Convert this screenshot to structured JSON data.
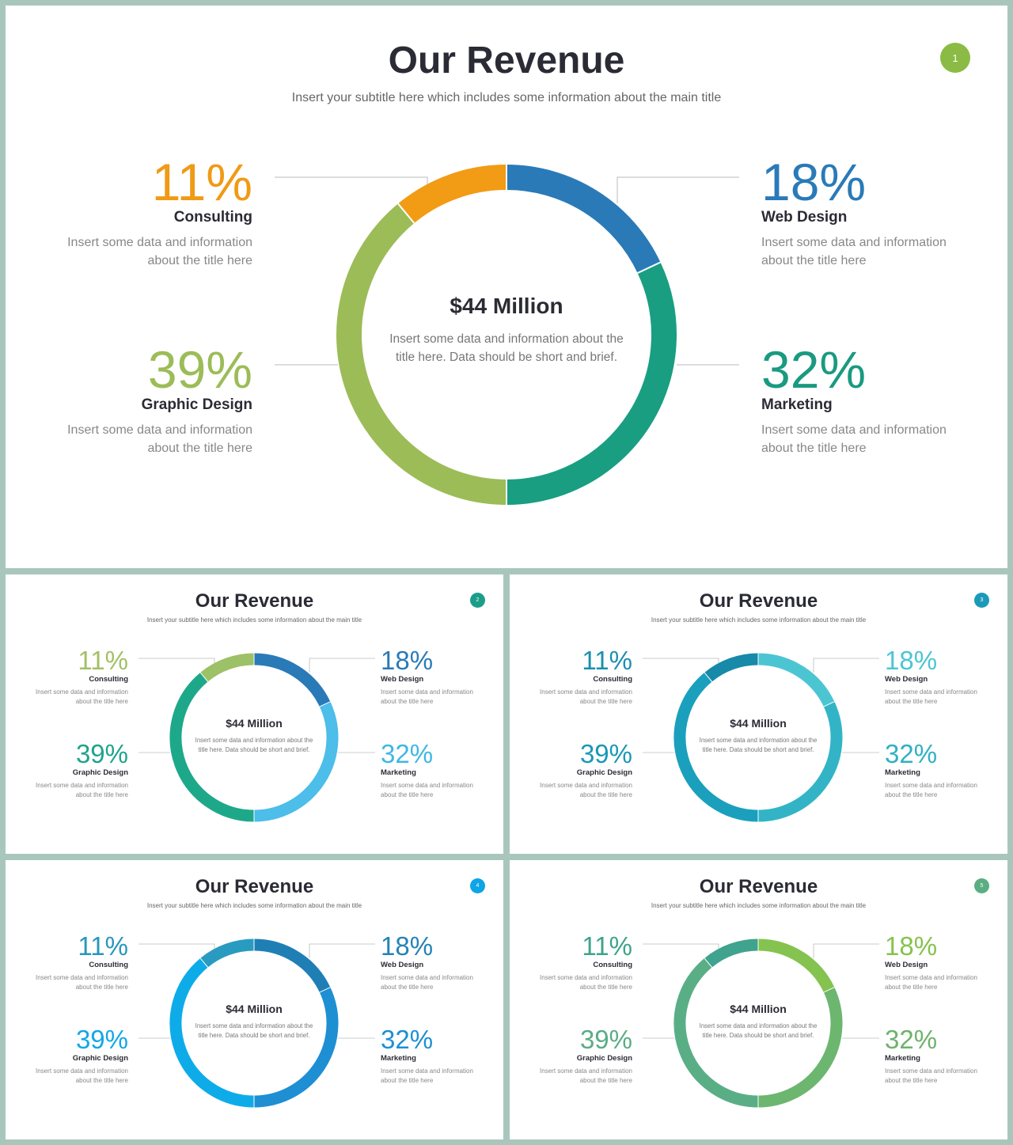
{
  "slides": [
    {
      "title": "Our Revenue",
      "subtitle": "Insert your subtitle here which includes some information about the main title",
      "badge": "1",
      "badge_color": "#8bbb44",
      "center_title": "$44 Million",
      "center_desc": "Insert some data and information about the title here. Data should be short and brief.",
      "items": [
        {
          "pct": "11%",
          "label": "Consulting",
          "desc": "Insert some data and information about the title here",
          "color": "#f09a16"
        },
        {
          "pct": "18%",
          "label": "Web Design",
          "desc": "Insert some data and information about the title here",
          "color": "#2a7ab8"
        },
        {
          "pct": "39%",
          "label": "Graphic Design",
          "desc": "Insert some data and information about the title here",
          "color": "#9cbc57"
        },
        {
          "pct": "32%",
          "label": "Marketing",
          "desc": "Insert some data and information about the title here",
          "color": "#1a9a80"
        }
      ],
      "segment_colors": {
        "Web Design": "#2a7ab8",
        "Marketing": "#199e81",
        "Graphic Design": "#9cbc57",
        "Consulting": "#f29b14"
      }
    },
    {
      "title": "Our Revenue",
      "subtitle": "Insert your subtitle here which includes some information about the main title",
      "badge": "2",
      "badge_color": "#1a9e8a",
      "center_title": "$44 Million",
      "center_desc": "Insert some data and information about the title here. Data should be short and brief.",
      "items": [
        {
          "pct": "11%",
          "label": "Consulting",
          "desc": "Insert some data and information about the title here",
          "color": "#a3c065"
        },
        {
          "pct": "18%",
          "label": "Web Design",
          "desc": "Insert some data and information about the title here",
          "color": "#2a7ab8"
        },
        {
          "pct": "39%",
          "label": "Graphic Design",
          "desc": "Insert some data and information about the title here",
          "color": "#1fa38c"
        },
        {
          "pct": "32%",
          "label": "Marketing",
          "desc": "Insert some data and information about the title here",
          "color": "#3fb7e4"
        }
      ],
      "segment_colors": {
        "Web Design": "#2a7ab8",
        "Marketing": "#4dbde9",
        "Graphic Design": "#1ea88a",
        "Consulting": "#9cc166"
      }
    },
    {
      "title": "Our Revenue",
      "subtitle": "Insert your subtitle here which includes some information about the main title",
      "badge": "3",
      "badge_color": "#1b9ab8",
      "center_title": "$44 Million",
      "center_desc": "Insert some data and information about the title here. Data should be short and brief.",
      "items": [
        {
          "pct": "11%",
          "label": "Consulting",
          "desc": "Insert some data and information about the title here",
          "color": "#1b8fae"
        },
        {
          "pct": "18%",
          "label": "Web Design",
          "desc": "Insert some data and information about the title here",
          "color": "#4cc5d3"
        },
        {
          "pct": "39%",
          "label": "Graphic Design",
          "desc": "Insert some data and information about the title here",
          "color": "#1a98b6"
        },
        {
          "pct": "32%",
          "label": "Marketing",
          "desc": "Insert some data and information about the title here",
          "color": "#2fb0c4"
        }
      ],
      "segment_colors": {
        "Web Design": "#4cc5d3",
        "Marketing": "#33b4c6",
        "Graphic Design": "#1aa0bd",
        "Consulting": "#168aa8"
      }
    },
    {
      "title": "Our Revenue",
      "subtitle": "Insert your subtitle here which includes some information about the main title",
      "badge": "4",
      "badge_color": "#0ea5e4",
      "center_title": "$44 Million",
      "center_desc": "Insert some data and information about the title here. Data should be short and brief.",
      "items": [
        {
          "pct": "11%",
          "label": "Consulting",
          "desc": "Insert some data and information about the title here",
          "color": "#2896be"
        },
        {
          "pct": "18%",
          "label": "Web Design",
          "desc": "Insert some data and information about the title here",
          "color": "#2482b8"
        },
        {
          "pct": "39%",
          "label": "Graphic Design",
          "desc": "Insert some data and information about the title here",
          "color": "#12a7e6"
        },
        {
          "pct": "32%",
          "label": "Marketing",
          "desc": "Insert some data and information about the title here",
          "color": "#1d8fd2"
        }
      ],
      "segment_colors": {
        "Web Design": "#1f7fb5",
        "Marketing": "#1e8fd3",
        "Graphic Design": "#0dace9",
        "Consulting": "#2a9bc0"
      }
    },
    {
      "title": "Our Revenue",
      "subtitle": "Insert your subtitle here which includes some information about the main title",
      "badge": "5",
      "badge_color": "#5aae82",
      "center_title": "$44 Million",
      "center_desc": "Insert some data and information about the title here. Data should be short and brief.",
      "items": [
        {
          "pct": "11%",
          "label": "Consulting",
          "desc": "Insert some data and information about the title here",
          "color": "#3ea38c"
        },
        {
          "pct": "18%",
          "label": "Web Design",
          "desc": "Insert some data and information about the title here",
          "color": "#86c24d"
        },
        {
          "pct": "39%",
          "label": "Graphic Design",
          "desc": "Insert some data and information about the title here",
          "color": "#5aac86"
        },
        {
          "pct": "32%",
          "label": "Marketing",
          "desc": "Insert some data and information about the title here",
          "color": "#6db26b"
        }
      ],
      "segment_colors": {
        "Web Design": "#84c34f",
        "Marketing": "#6cb670",
        "Graphic Design": "#5aae86",
        "Consulting": "#3fa38e"
      }
    }
  ],
  "chart_data": {
    "type": "pie",
    "categories": [
      "Web Design",
      "Marketing",
      "Graphic Design",
      "Consulting"
    ],
    "values": [
      18,
      32,
      39,
      11
    ],
    "title": "Our Revenue"
  }
}
